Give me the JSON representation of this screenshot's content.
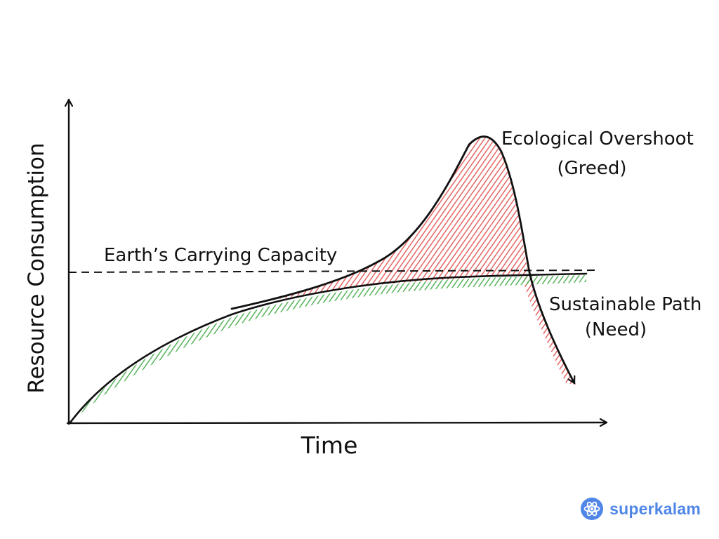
{
  "diagram": {
    "y_axis_label": "Resource Consumption",
    "x_axis_label": "Time",
    "capacity_label": "Earth’s Carrying Capacity",
    "overshoot_label_line1": "Ecological Overshoot",
    "overshoot_label_line2": "(Greed)",
    "sustainable_label_line1": "Sustainable Path",
    "sustainable_label_line2": "(Need)",
    "colors": {
      "ink": "#111111",
      "overshoot_fill": "#e35d5d",
      "sustainable_fill": "#4caf50",
      "brand": "#4f86e8"
    }
  },
  "brand": {
    "name": "superkalam",
    "icon": "atom-logo-icon"
  }
}
